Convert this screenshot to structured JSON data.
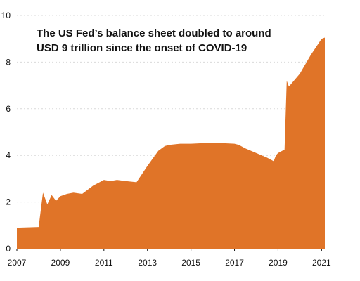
{
  "colors": {
    "area": "#E07428",
    "grid": "#D9D9D9",
    "text": "#111111",
    "background": "#FFFFFF"
  },
  "chart_data": {
    "type": "area",
    "title_lines": [
      "The US Fed’s balance sheet doubled to around",
      "USD 9 trillion since the onset of COVID-19"
    ],
    "xlabel": "",
    "ylabel": "",
    "xlim": [
      2007,
      2021.15
    ],
    "ylim": [
      0,
      10
    ],
    "x_ticks": [
      "2007",
      "2009",
      "2011",
      "2013",
      "2015",
      "2017",
      "2019",
      "2021"
    ],
    "y_ticks": [
      "0",
      "2",
      "4",
      "6",
      "8",
      "10"
    ],
    "grid": "horizontal-dashed",
    "legend": "none",
    "series": [
      {
        "x": [
          2007.0,
          2008.0,
          2008.2,
          2008.4,
          2008.6,
          2008.8,
          2009.0,
          2009.3,
          2009.6,
          2010.0,
          2010.5,
          2011.0,
          2011.3,
          2011.6,
          2012.0,
          2012.5,
          2013.0,
          2013.5,
          2013.8,
          2014.0,
          2014.5,
          2015.0,
          2015.5,
          2016.0,
          2016.5,
          2017.0,
          2017.2,
          2017.5,
          2018.0,
          2018.5,
          2018.8,
          2018.9,
          2019.0,
          2019.3,
          2019.4,
          2019.5,
          2020.0,
          2020.5,
          2021.0,
          2021.15
        ],
        "y": [
          0.9,
          0.93,
          2.4,
          1.9,
          2.3,
          2.05,
          2.25,
          2.35,
          2.4,
          2.35,
          2.7,
          2.95,
          2.9,
          2.95,
          2.9,
          2.85,
          3.55,
          4.2,
          4.4,
          4.45,
          4.5,
          4.5,
          4.52,
          4.52,
          4.52,
          4.5,
          4.45,
          4.3,
          4.1,
          3.9,
          3.75,
          4.0,
          4.1,
          4.25,
          7.2,
          6.95,
          7.5,
          8.3,
          9.0,
          9.05
        ]
      }
    ]
  }
}
